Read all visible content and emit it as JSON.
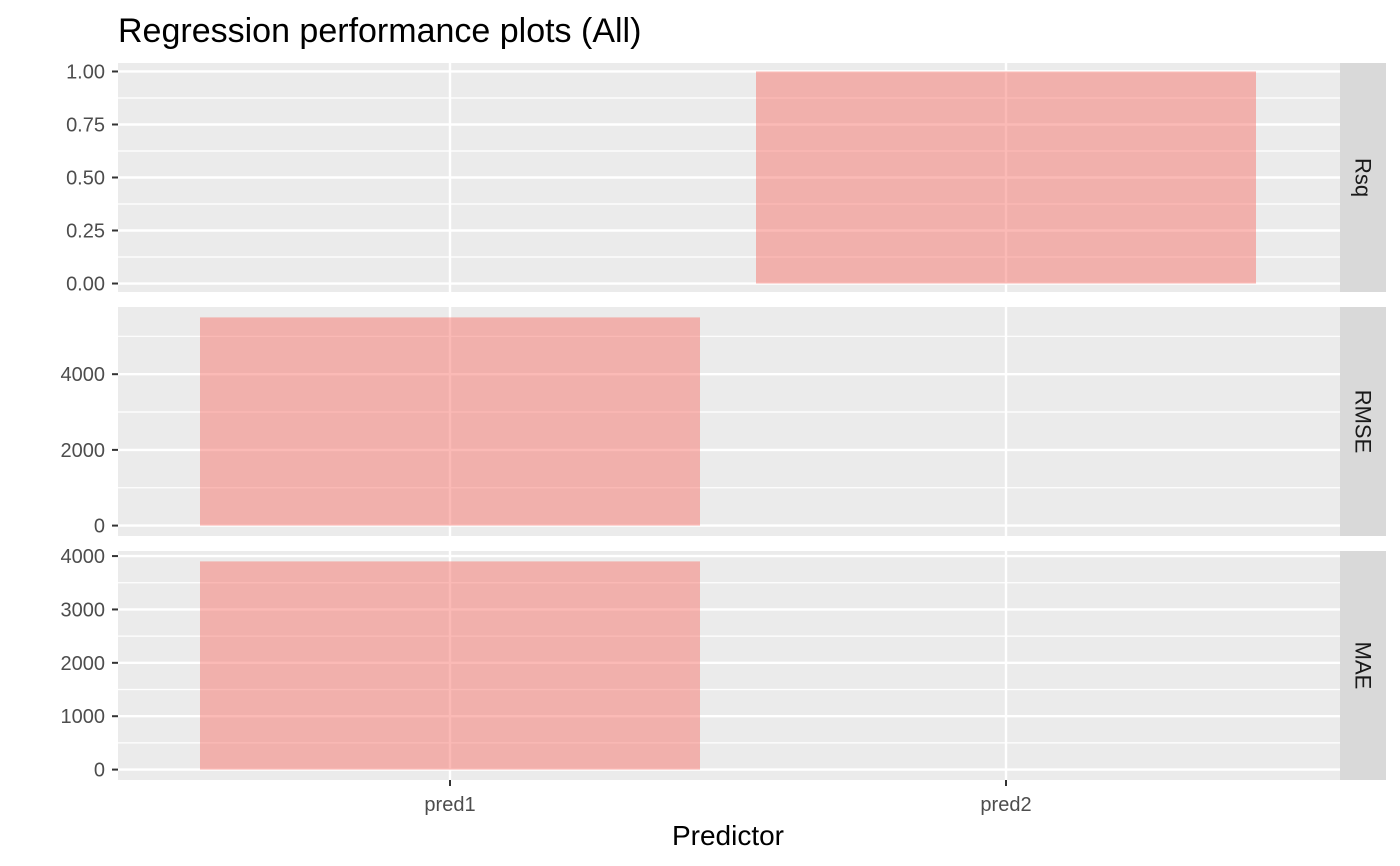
{
  "chart_data": {
    "type": "bar",
    "title": "Regression performance plots (All)",
    "xlabel": "Predictor",
    "ylabel": "",
    "categories": [
      "pred1",
      "pred2"
    ],
    "bar_color": "#f8766d",
    "bar_opacity": 0.5,
    "panel_background": "#ebebeb",
    "strip_background": "#d9d9d9",
    "grid": true,
    "facets": [
      {
        "label": "Rsq",
        "ylim": [
          -0.04,
          1.04
        ],
        "ticks": [
          0,
          0.25,
          0.5,
          0.75,
          1
        ],
        "tick_labels": [
          "0.00",
          "0.25",
          "0.50",
          "0.75",
          "1.00"
        ],
        "values": [
          0,
          1
        ]
      },
      {
        "label": "RMSE",
        "ylim": [
          -275,
          5775
        ],
        "ticks": [
          0,
          2000,
          4000
        ],
        "tick_labels": [
          "0",
          "2000",
          "4000"
        ],
        "values": [
          5500,
          0
        ]
      },
      {
        "label": "MAE",
        "ylim": [
          -195,
          4095
        ],
        "ticks": [
          0,
          1000,
          2000,
          3000,
          4000
        ],
        "tick_labels": [
          "0",
          "1000",
          "2000",
          "3000",
          "4000"
        ],
        "values": [
          3900,
          0
        ]
      }
    ]
  }
}
